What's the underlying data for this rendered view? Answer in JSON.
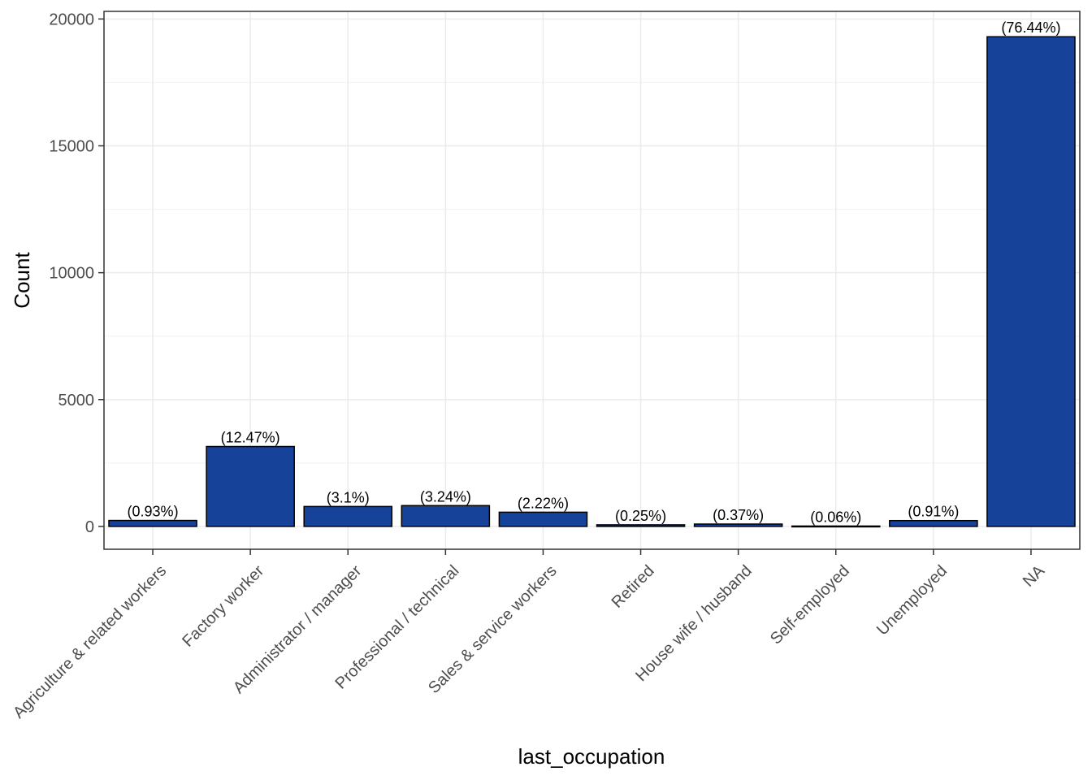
{
  "chart_data": {
    "type": "bar",
    "title": "",
    "xlabel": "last_occupation",
    "ylabel": "Count",
    "ylim": [
      -900,
      20300
    ],
    "yticks": [
      0,
      5000,
      10000,
      15000,
      20000
    ],
    "grid": true,
    "legend": "none",
    "bar_fill": "#174299",
    "bar_stroke": "#000000",
    "categories": [
      "Agriculture & related workers",
      "Factory worker",
      "Administrator / manager",
      "Professional / technical",
      "Sales & service workers",
      "Retired",
      "House wife / husband",
      "Self-employed",
      "Unemployed",
      "NA"
    ],
    "values": [
      235,
      3150,
      785,
      820,
      560,
      63,
      93,
      15,
      230,
      19300
    ],
    "labels": [
      "(0.93%)",
      "(12.47%)",
      "(3.1%)",
      "(3.24%)",
      "(2.22%)",
      "(0.25%)",
      "(0.37%)",
      "(0.06%)",
      "(0.91%)",
      "(76.44%)"
    ]
  }
}
